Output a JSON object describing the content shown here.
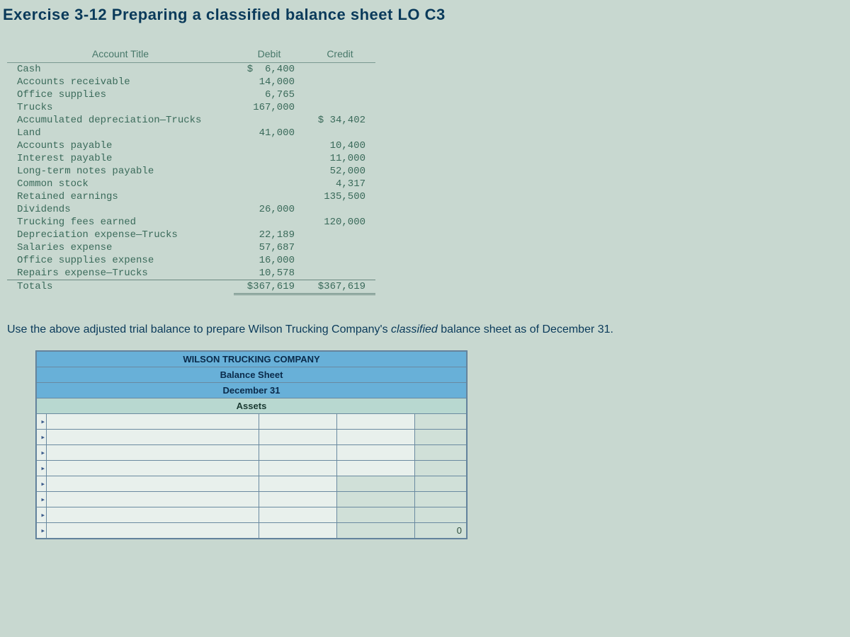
{
  "title": "Exercise 3-12 Preparing a classified balance sheet LO C3",
  "trial_balance": {
    "type": "table",
    "columns": [
      "Account Title",
      "Debit",
      "Credit"
    ],
    "colors": {
      "text": "#3a6a5a",
      "header_text": "#48786a",
      "border": "#7a9890",
      "background": "#c8d8d0"
    },
    "font": {
      "family": "Courier New, monospace",
      "size_pt": 11
    },
    "rows": [
      {
        "title": "Cash",
        "debit": "$  6,400",
        "credit": ""
      },
      {
        "title": "Accounts receivable",
        "debit": "14,000",
        "credit": ""
      },
      {
        "title": "Office supplies",
        "debit": "6,765",
        "credit": ""
      },
      {
        "title": "Trucks",
        "debit": "167,000",
        "credit": ""
      },
      {
        "title": "Accumulated depreciation—Trucks",
        "debit": "",
        "credit": "$ 34,402"
      },
      {
        "title": "Land",
        "debit": "41,000",
        "credit": ""
      },
      {
        "title": "Accounts payable",
        "debit": "",
        "credit": "10,400"
      },
      {
        "title": "Interest payable",
        "debit": "",
        "credit": "11,000"
      },
      {
        "title": "Long-term notes payable",
        "debit": "",
        "credit": "52,000"
      },
      {
        "title": "Common stock",
        "debit": "",
        "credit": "4,317"
      },
      {
        "title": "Retained earnings",
        "debit": "",
        "credit": "135,500"
      },
      {
        "title": "Dividends",
        "debit": "26,000",
        "credit": ""
      },
      {
        "title": "Trucking fees earned",
        "debit": "",
        "credit": "120,000"
      },
      {
        "title": "Depreciation expense—Trucks",
        "debit": "22,189",
        "credit": ""
      },
      {
        "title": "Salaries expense",
        "debit": "57,687",
        "credit": ""
      },
      {
        "title": "Office supplies expense",
        "debit": "16,000",
        "credit": ""
      },
      {
        "title": "Repairs expense—Trucks",
        "debit": "10,578",
        "credit": ""
      }
    ],
    "totals": {
      "title": "Totals",
      "debit": "$367,619",
      "credit": "$367,619"
    }
  },
  "instruction_pre": "Use the above adjusted trial balance to prepare Wilson Trucking Company's ",
  "instruction_em": "classified",
  "instruction_post": " balance sheet as of December 31.",
  "balance_sheet": {
    "type": "table",
    "company": "WILSON TRUCKING COMPANY",
    "report": "Balance Sheet",
    "date": "December 31",
    "section": "Assets",
    "colors": {
      "header_bg": "#68b0d8",
      "header_text": "#0a2a4a",
      "sub_bg": "#b8d8d0",
      "cell_bg": "#e8f0ec",
      "border": "#6a8aa0",
      "sum_bg": "#d0e0d8"
    },
    "blank_rows": 8,
    "zero_value": "0"
  }
}
